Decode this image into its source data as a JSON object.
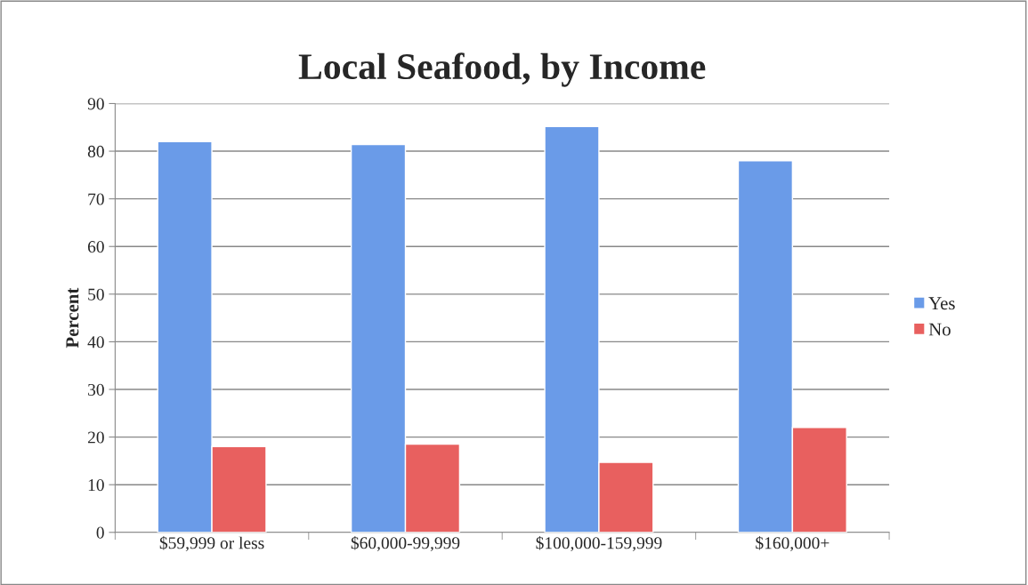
{
  "chart_data": {
    "type": "bar",
    "title": "Local Seafood, by Income",
    "ylabel": "Percent",
    "categories": [
      "$59,999 or less",
      "$60,000-99,999",
      "$100,000-159,999",
      "$160,000+"
    ],
    "series": [
      {
        "name": "Yes",
        "color": "#6a9be8",
        "values": [
          82,
          81.4,
          85.2,
          78
        ]
      },
      {
        "name": "No",
        "color": "#e8605f",
        "values": [
          18,
          18.5,
          14.7,
          22
        ]
      }
    ],
    "ylim": [
      0,
      90
    ],
    "yticks": [
      0,
      10,
      20,
      30,
      40,
      50,
      60,
      70,
      80,
      90
    ],
    "grid": "y",
    "legend": "right"
  }
}
